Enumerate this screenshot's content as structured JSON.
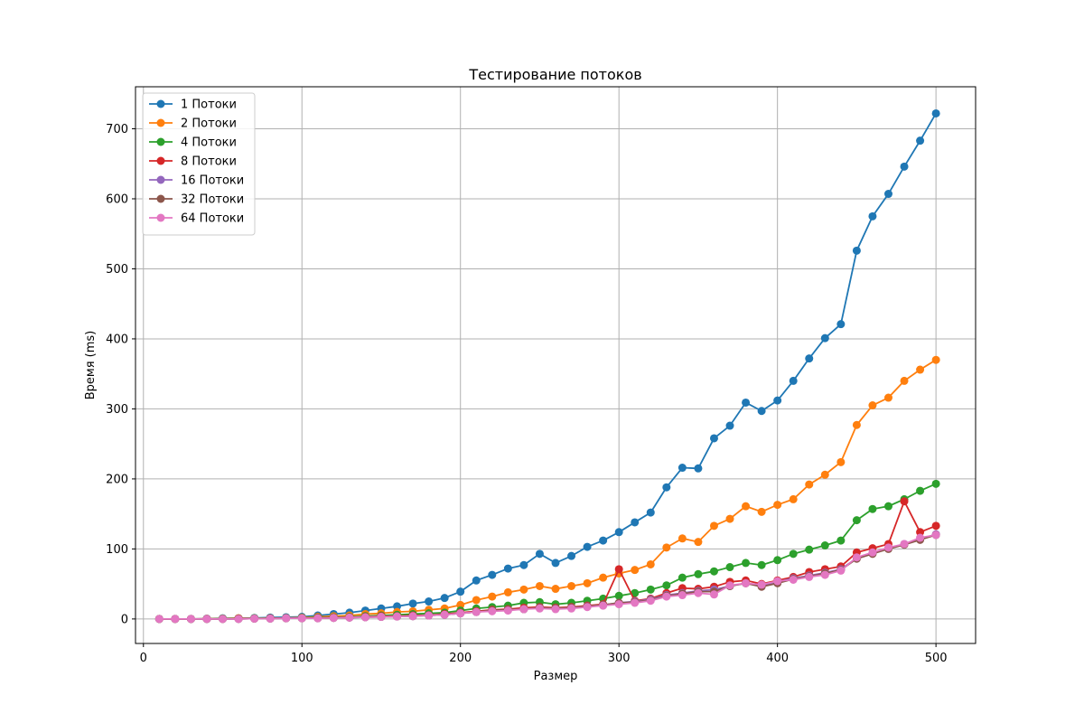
{
  "chart_data": {
    "type": "line",
    "title": "Тестирование потоков",
    "xlabel": "Размер",
    "ylabel": "Время (ms)",
    "xlim": [
      -5,
      525
    ],
    "ylim": [
      -35,
      760
    ],
    "xticks": [
      0,
      100,
      200,
      300,
      400,
      500
    ],
    "yticks": [
      0,
      100,
      200,
      300,
      400,
      500,
      600,
      700
    ],
    "grid": true,
    "legend_position": "top-left",
    "x": [
      10,
      20,
      30,
      40,
      50,
      60,
      70,
      80,
      90,
      100,
      110,
      120,
      130,
      140,
      150,
      160,
      170,
      180,
      190,
      200,
      210,
      220,
      230,
      240,
      250,
      260,
      270,
      280,
      290,
      300,
      310,
      320,
      330,
      340,
      350,
      360,
      370,
      380,
      390,
      400,
      410,
      420,
      430,
      440,
      450,
      460,
      470,
      480,
      490,
      500
    ],
    "series": [
      {
        "name": "1 Потоки",
        "color": "#1f77b4",
        "values": [
          0,
          0,
          0,
          0.5,
          1,
          1,
          1.5,
          2,
          2.5,
          3,
          5,
          7,
          9,
          12,
          15,
          18,
          22,
          25,
          30,
          39,
          55,
          63,
          72,
          77,
          93,
          80,
          90,
          103,
          112,
          124,
          138,
          152,
          188,
          216,
          215,
          258,
          276,
          309,
          297,
          312,
          340,
          372,
          401,
          421,
          526,
          575,
          607,
          646,
          683,
          722
        ]
      },
      {
        "name": "2 Потоки",
        "color": "#ff7f0e",
        "values": [
          0,
          0,
          0,
          0.3,
          0.5,
          1,
          1,
          1,
          1.5,
          2,
          3,
          4,
          5,
          7,
          8,
          10,
          11,
          13,
          15,
          20,
          27,
          32,
          38,
          42,
          47,
          43,
          47,
          51,
          59,
          65,
          70,
          78,
          102,
          115,
          110,
          133,
          143,
          161,
          153,
          163,
          171,
          192,
          206,
          224,
          277,
          305,
          316,
          340,
          356,
          370
        ]
      },
      {
        "name": "4 Потоки",
        "color": "#2ca02c",
        "values": [
          0,
          0,
          0,
          0,
          0.3,
          0.5,
          1,
          1,
          1,
          1.5,
          2,
          2.5,
          3,
          4,
          5,
          6,
          7,
          8,
          9,
          12,
          15,
          17,
          19,
          23,
          24,
          21,
          23,
          26,
          29,
          33,
          37,
          42,
          48,
          59,
          64,
          68,
          74,
          80,
          77,
          84,
          93,
          99,
          105,
          112,
          141,
          157,
          161,
          171,
          183,
          193
        ]
      },
      {
        "name": "8 Потоки",
        "color": "#d62728",
        "values": [
          0,
          0,
          0,
          0,
          0,
          0.5,
          0.5,
          1,
          1,
          1,
          1.5,
          2,
          2.5,
          3,
          4,
          4,
          5,
          5.5,
          7,
          9,
          11,
          13,
          14,
          16,
          17,
          16,
          17,
          19,
          21,
          71,
          26,
          29,
          37,
          44,
          43,
          46,
          53,
          55,
          50,
          55,
          60,
          67,
          71,
          75,
          95,
          101,
          107,
          168,
          124,
          133
        ]
      },
      {
        "name": "16 Потоки",
        "color": "#9467bd",
        "values": [
          0,
          0,
          0,
          0,
          0,
          0,
          0.5,
          0.5,
          1,
          1,
          1,
          1.5,
          2,
          2.5,
          3,
          3.5,
          4,
          5,
          6,
          8,
          10,
          12,
          13,
          14,
          16,
          15,
          16,
          18,
          20,
          23,
          25,
          28,
          34,
          37,
          40,
          42,
          47,
          51,
          47,
          53,
          58,
          62,
          66,
          71,
          87,
          94,
          101,
          107,
          114,
          121
        ]
      },
      {
        "name": "32 Потоки",
        "color": "#8c564b",
        "values": [
          0,
          0,
          0,
          0,
          0,
          0,
          0.5,
          0.5,
          1,
          1,
          1,
          1.5,
          2,
          2.5,
          3,
          3.5,
          4,
          5,
          6,
          8,
          10,
          12,
          13,
          14,
          16,
          15,
          16,
          18,
          20,
          23,
          24,
          27,
          33,
          36,
          39,
          39,
          47,
          51,
          46,
          51,
          57,
          61,
          65,
          70,
          86,
          93,
          100,
          106,
          113,
          120
        ]
      },
      {
        "name": "64 Потоки",
        "color": "#e377c2",
        "values": [
          0,
          0,
          0,
          0,
          0,
          0,
          0.5,
          0.5,
          1,
          1,
          1,
          1.5,
          2,
          2.5,
          3,
          3.5,
          4,
          5,
          6,
          8,
          10,
          11,
          12,
          14,
          15,
          14,
          15,
          17,
          19,
          21,
          23,
          26,
          32,
          34,
          37,
          35,
          48,
          51,
          49,
          54,
          56,
          60,
          63,
          69,
          88,
          95,
          102,
          107,
          116,
          120
        ]
      }
    ]
  }
}
